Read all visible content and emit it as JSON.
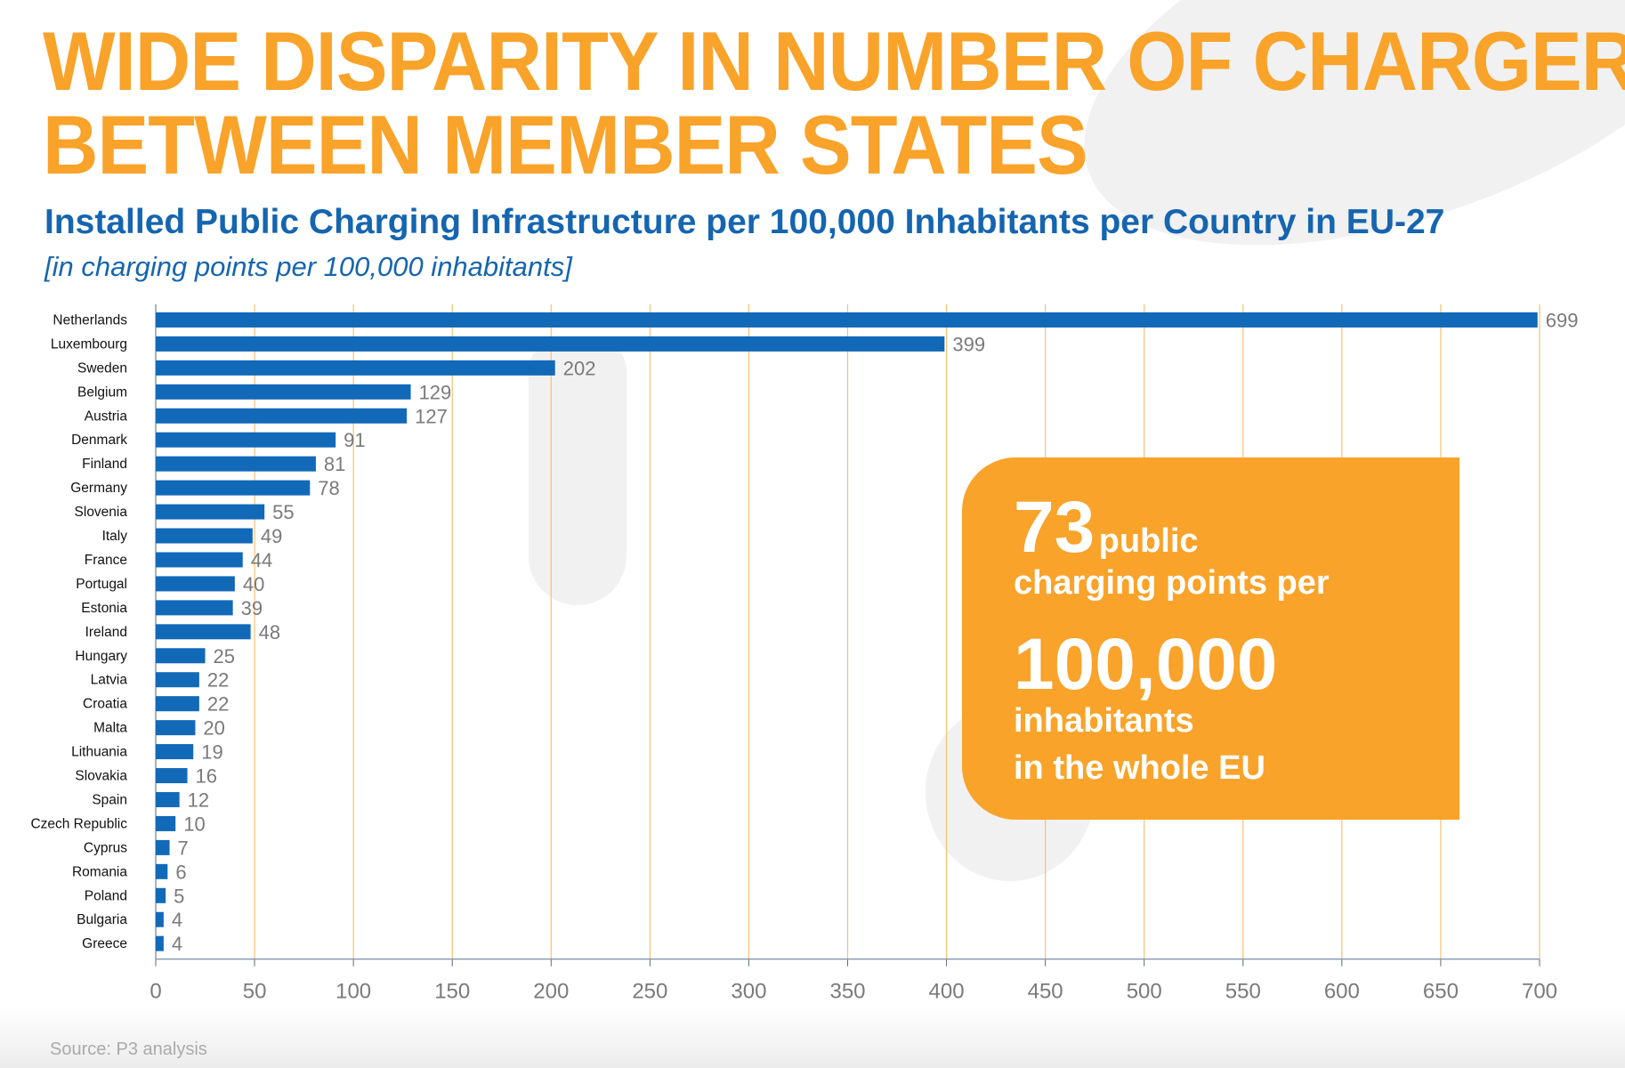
{
  "title_line1": "WIDE DISPARITY IN NUMBER OF CHARGERS",
  "title_line2": "BETWEEN MEMBER STATES",
  "colors": {
    "title": "#f9a32a",
    "bar": "#1269b8",
    "subtitle": "#1565b0",
    "grid": "#f9c070",
    "label": "#7a7a7a"
  },
  "callout": {
    "number": "73",
    "line1_rest": "public",
    "line2": "charging points per",
    "line3": "100,000",
    "line4": "inhabitants",
    "line5": "in the whole EU"
  },
  "source": "Source: P3 analysis",
  "chart_data": {
    "type": "bar",
    "orientation": "horizontal",
    "title": "Installed Public Charging Infrastructure per 100,000 Inhabitants per Country in EU-27",
    "subtitle": "[in charging points per 100,000 inhabitants]",
    "xlabel": "",
    "ylabel": "",
    "xlim": [
      0,
      700
    ],
    "xticks": [
      "0",
      "50",
      "100",
      "150",
      "200",
      "250",
      "300",
      "350",
      "400",
      "450",
      "500",
      "550",
      "600",
      "650",
      "700"
    ],
    "grid": true,
    "categories": [
      "Netherlands",
      "Luxembourg",
      "Sweden",
      "Belgium",
      "Austria",
      "Denmark",
      "Finland",
      "Germany",
      "Slovenia",
      "Italy",
      "France",
      "Portugal",
      "Estonia",
      "Ireland",
      "Hungary",
      "Latvia",
      "Croatia",
      "Malta",
      "Lithuania",
      "Slovakia",
      "Spain",
      "Czech Republic",
      "Cyprus",
      "Romania",
      "Poland",
      "Bulgaria",
      "Greece"
    ],
    "values": [
      699,
      399,
      202,
      129,
      127,
      91,
      81,
      78,
      55,
      49,
      44,
      40,
      39,
      48,
      25,
      22,
      22,
      20,
      19,
      16,
      12,
      10,
      7,
      6,
      5,
      4,
      4
    ]
  }
}
